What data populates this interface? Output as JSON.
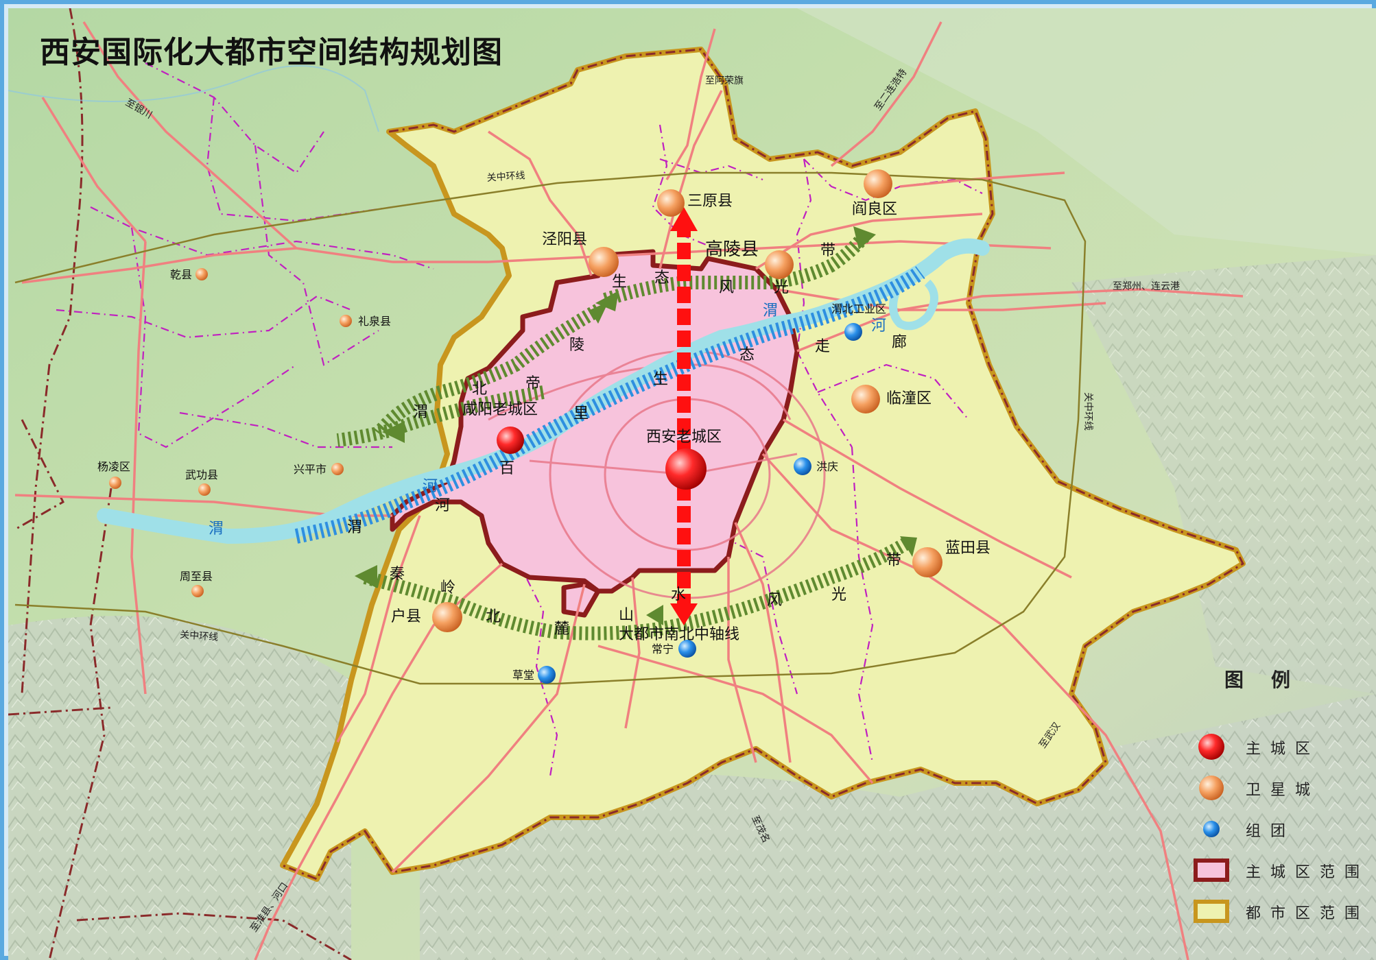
{
  "title": "西安国际化大都市空间结构规划图",
  "cities": {
    "main_xian": "西安老城区",
    "main_xianyang": "咸阳老城区",
    "sat_sanyuan": "三原县",
    "sat_yanliang": "阎良区",
    "sat_jingyang": "泾阳县",
    "sat_gaoling": "高陵县",
    "sat_lintong": "临潼区",
    "sat_lantian": "蓝田县",
    "sat_huxian": "户县",
    "tw_qianxian": "乾县",
    "tw_liquan": "礼泉县",
    "tw_yangling": "杨凌区",
    "tw_wugong": "武功县",
    "tw_xingping": "兴平市",
    "tw_zhouzhi": "周至县",
    "grp_weibei": "渭北工业区",
    "grp_hongqing": "洪庆",
    "grp_changning": "常宁",
    "grp_caotang": "草堂"
  },
  "roads": {
    "to_yinchuan": "至银川",
    "to_arongqi": "至阿荣旗",
    "to_erlianhaote": "至二连浩特",
    "to_zhengzhou": "至郑州、连云港",
    "to_wuhan": "至武汉",
    "to_maoming": "至茂名",
    "to_heihe": "至淮县、河口",
    "guanzhong_ring_n": "关中环线",
    "guanzhong_ring_e": "关中环线",
    "guanzhong_ring_s": "关中环线"
  },
  "corridor_chars": {
    "weihe": [
      "渭",
      "河",
      "走",
      "廊"
    ],
    "weihe_w": [
      "渭",
      "河"
    ],
    "weihe_river": [
      "渭",
      "河",
      "渭",
      "河"
    ],
    "north": [
      "生",
      "态",
      "风",
      "光",
      "带"
    ],
    "wubei": [
      "北",
      "帝",
      "陵",
      "生",
      "态"
    ],
    "wubei_w": [
      "渭",
      "北",
      "帝",
      "陵",
      "百",
      "里"
    ],
    "south": [
      "秦",
      "岭",
      "北",
      "麓",
      "山",
      "水",
      "风",
      "光",
      "带"
    ]
  },
  "axis_label": "大都市南北中轴线",
  "legend": {
    "title": "图例",
    "items": [
      {
        "label": "主城区",
        "type": "main-city"
      },
      {
        "label": "卫星城",
        "type": "satellite"
      },
      {
        "label": "组团",
        "type": "group"
      },
      {
        "label": "主城区范围",
        "type": "main-range"
      },
      {
        "label": "都市区范围",
        "type": "metro-range"
      }
    ]
  },
  "colors": {
    "main_city": "#e8141c",
    "satellite": "#f0a060",
    "group": "#1e90e8",
    "main_range_fill": "#f7c3dc",
    "main_range_border": "#8c1c1c",
    "metro_range_fill": "#eef2b0",
    "metro_range_border": "#c8961e",
    "river": "#9fe0e8",
    "corridor_blue": "#2e8fe0",
    "corridor_green": "#5f8a30",
    "axis": "#ff1010",
    "road": "#f08080",
    "boundary": "#c020c0",
    "province_border": "#8a2a2a"
  }
}
